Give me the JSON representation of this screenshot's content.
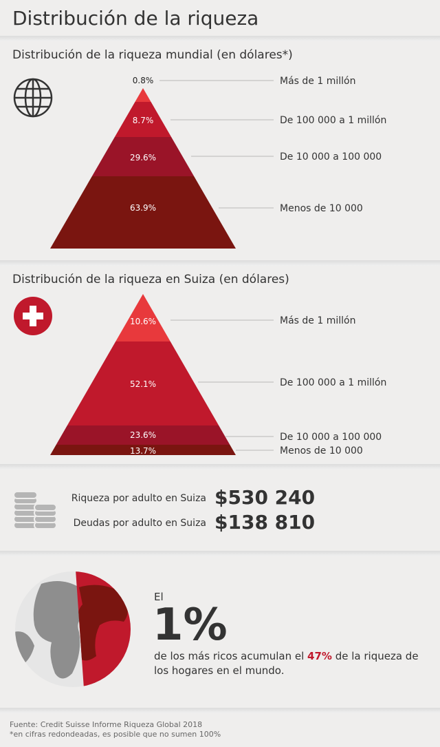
{
  "header": {
    "title": "Distribución de la riqueza"
  },
  "world": {
    "subtitle": "Distribución de la riqueza mundial (en dólares*)",
    "icon": "globe-icon",
    "tiers": [
      {
        "pct": "0.8%",
        "label": "Más de 1 millón",
        "color": "#e8393c"
      },
      {
        "pct": "8.7%",
        "label": "De 100 000 a 1 millón",
        "color": "#c0192c"
      },
      {
        "pct": "29.6%",
        "label": "De 10 000 a 100 000",
        "color": "#9a1428"
      },
      {
        "pct": "63.9%",
        "label": "Menos de 10 000",
        "color": "#7a1510"
      }
    ]
  },
  "swiss": {
    "subtitle": "Distribución de la riqueza en Suiza (en dólares)",
    "icon": "swiss-flag-icon",
    "tiers": [
      {
        "pct": "10.6%",
        "label": "Más de 1 millón",
        "color": "#e8393c"
      },
      {
        "pct": "52.1%",
        "label": "De 100 000 a 1 millón",
        "color": "#c0192c"
      },
      {
        "pct": "23.6%",
        "label": "De 10 000 a 100 000",
        "color": "#9a1428"
      },
      {
        "pct": "13.7%",
        "label": "Menos de 10 000",
        "color": "#7a1510"
      }
    ]
  },
  "stats": {
    "icon": "coins-icon",
    "wealth_label": "Riqueza por adulto en Suiza",
    "wealth_value": "$530 240",
    "debt_label": "Deudas por adulto en Suiza",
    "debt_value": "$138 810"
  },
  "top1": {
    "icon": "earth-icon",
    "el": "El",
    "big": "1%",
    "desc_pre": "de los más ricos acumulan el ",
    "desc_hl": "47%",
    "desc_post": " de la riqueza de los hogares en el mundo."
  },
  "footer": {
    "source": "Fuente:  Credit Suisse Informe Riqueza Global 2018",
    "note": "*en cifras redondeadas, es posible que no sumen 100%"
  },
  "chart_data": [
    {
      "type": "bar",
      "title": "Distribución de la riqueza mundial (en dólares*)",
      "categories": [
        "Más de 1 millón",
        "De 100 000 a 1 millón",
        "De 10 000 a 100 000",
        "Menos de 10 000"
      ],
      "values": [
        0.8,
        8.7,
        29.6,
        63.9
      ],
      "unit": "%"
    },
    {
      "type": "bar",
      "title": "Distribución de la riqueza en Suiza (en dólares)",
      "categories": [
        "Más de 1 millón",
        "De 100 000 a 1 millón",
        "De 10 000 a 100 000",
        "Menos de 10 000"
      ],
      "values": [
        10.6,
        52.1,
        23.6,
        13.7
      ],
      "unit": "%"
    }
  ]
}
